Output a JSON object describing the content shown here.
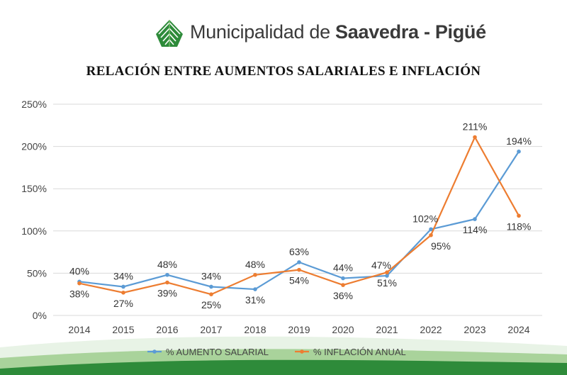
{
  "header": {
    "brand_regular": "Municipalidad de ",
    "brand_bold": "Saavedra - Pigüé",
    "logo_icon": "leaf-logo-icon"
  },
  "title": "RELACIÓN ENTRE AUMENTOS SALARIALES E INFLACIÓN",
  "colors": {
    "salary": "#5b9bd5",
    "inflation": "#ed7d31",
    "grid": "#d9d9d9",
    "wave_green": "#2e8b3a"
  },
  "chart_data": {
    "type": "line",
    "title": "RELACIÓN ENTRE AUMENTOS SALARIALES E INFLACIÓN",
    "categories": [
      "2014",
      "2015",
      "2016",
      "2017",
      "2018",
      "2019",
      "2020",
      "2021",
      "2022",
      "2023",
      "2024"
    ],
    "series": [
      {
        "name": "% AUMENTO SALARIAL",
        "color": "#5b9bd5",
        "values": [
          40,
          34,
          48,
          34,
          31,
          63,
          44,
          47,
          102,
          114,
          194
        ],
        "labels": [
          "40%",
          "34%",
          "48%",
          "34%",
          "31%",
          "63%",
          "44%",
          "47%",
          "102%",
          "114%",
          "194%"
        ]
      },
      {
        "name": "% INFLACIÓN ANUAL",
        "color": "#ed7d31",
        "values": [
          38,
          27,
          39,
          25,
          48,
          54,
          36,
          51,
          95,
          211,
          118
        ],
        "labels": [
          "38%",
          "27%",
          "39%",
          "25%",
          "48%",
          "54%",
          "36%",
          "51%",
          "95%",
          "211%",
          "118%"
        ]
      }
    ],
    "y_ticks": [
      "0%",
      "50%",
      "100%",
      "150%",
      "200%",
      "250%"
    ],
    "ylim": [
      0,
      250
    ],
    "grid": true,
    "legend": "bottom"
  }
}
